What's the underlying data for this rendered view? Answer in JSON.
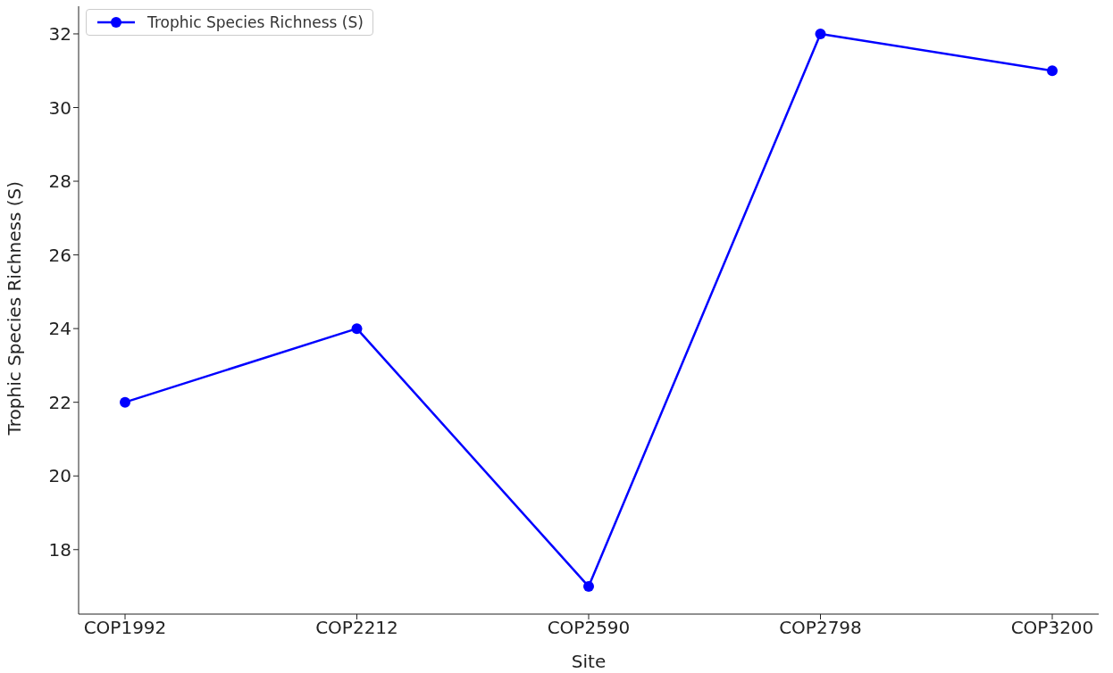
{
  "chart_data": {
    "type": "line",
    "xlabel": "Site",
    "ylabel": "Trophic Species Richness (S)",
    "categories": [
      "COP1992",
      "COP2212",
      "COP2590",
      "COP2798",
      "COP3200"
    ],
    "series": [
      {
        "name": "Trophic Species Richness (S)",
        "color": "#0000ff",
        "values": [
          22,
          24,
          17,
          32,
          31
        ]
      }
    ],
    "ylim": [
      16.25,
      32.75
    ],
    "yticks": [
      18,
      20,
      22,
      24,
      26,
      28,
      30,
      32
    ],
    "grid": false,
    "legend": "top left",
    "marker": "circle",
    "line_style": "solid"
  }
}
